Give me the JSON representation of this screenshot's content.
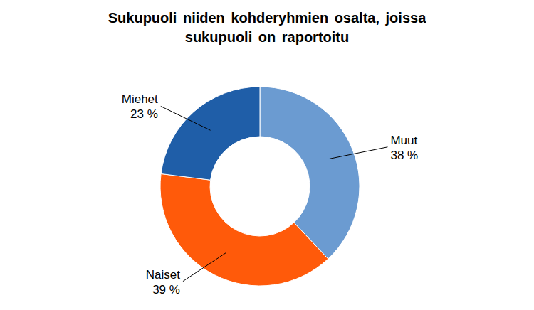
{
  "chart_data": {
    "type": "donut",
    "title": "Sukupuoli niiden kohderyhmien osalta, joissa sukupuoli on raportoitu",
    "categories": [
      "Muut",
      "Naiset",
      "Miehet"
    ],
    "values": [
      38,
      39,
      23
    ],
    "value_labels": [
      "38 %",
      "39 %",
      "23 %"
    ],
    "colors": [
      "#6b9bd1",
      "#ff5a0a",
      "#1f5ea8"
    ],
    "data_labels": true
  }
}
